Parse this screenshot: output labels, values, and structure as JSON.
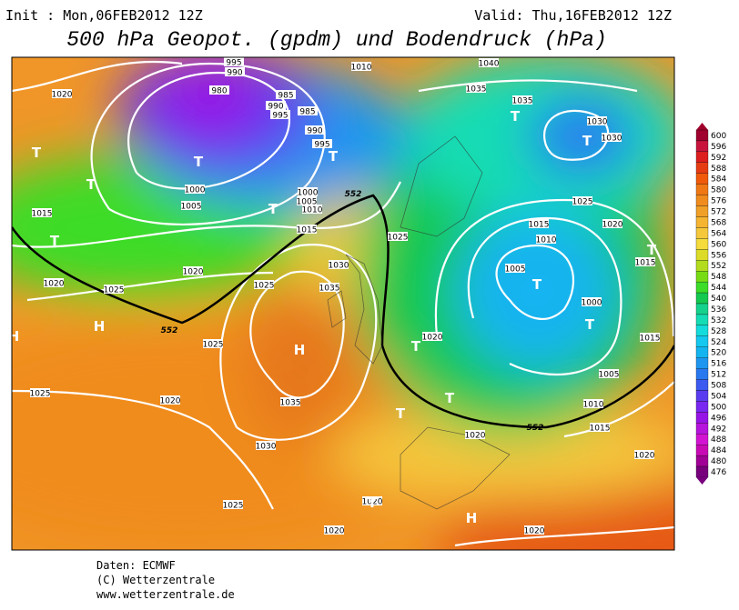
{
  "header": {
    "init": "Init : Mon,06FEB2012 12Z",
    "valid": "Valid: Thu,16FEB2012 12Z",
    "title": "500 hPa Geopot. (gpdm) und Bodendruck (hPa)"
  },
  "legend": {
    "levels": [
      600,
      596,
      592,
      588,
      584,
      580,
      576,
      572,
      568,
      564,
      560,
      556,
      552,
      548,
      544,
      540,
      536,
      532,
      528,
      524,
      520,
      516,
      512,
      508,
      504,
      500,
      496,
      492,
      488,
      484,
      480,
      476
    ],
    "colors": [
      "#a0002d",
      "#c8143c",
      "#dc1e1e",
      "#e63c14",
      "#f05a0a",
      "#f07814",
      "#f08c1e",
      "#f0a028",
      "#f5b432",
      "#f5c83c",
      "#f5dc3c",
      "#dcdc28",
      "#b4dc1e",
      "#78dc14",
      "#3cdc28",
      "#14c850",
      "#14d28c",
      "#14dcb4",
      "#14dcdc",
      "#14c8f0",
      "#14b4f0",
      "#1e96f0",
      "#2878f0",
      "#3c5af0",
      "#5a3cf0",
      "#7828f0",
      "#9614e6",
      "#b414dc",
      "#d214d2",
      "#c80ab4",
      "#a00096",
      "#78007d"
    ]
  },
  "isobar_labels": [
    "1020",
    "995",
    "990",
    "980",
    "985",
    "990",
    "995",
    "985",
    "990",
    "995",
    "1000",
    "1005",
    "1000",
    "1005",
    "1010",
    "1015",
    "1010",
    "1040",
    "1035",
    "1035",
    "1030",
    "1030",
    "1025",
    "1020",
    "1015",
    "1010",
    "1005",
    "1000",
    "1015",
    "1015",
    "1005",
    "1010",
    "1015",
    "1020",
    "1015",
    "1020",
    "1025",
    "1020",
    "1025",
    "1025",
    "1030",
    "1035",
    "1025",
    "1025",
    "1020",
    "1035",
    "1030",
    "1020",
    "1020",
    "1020",
    "1025",
    "1020",
    "1020"
  ],
  "height_labels": [
    "552",
    "552",
    "552"
  ],
  "pressure_centers": [
    "T",
    "T",
    "T",
    "T",
    "T",
    "T",
    "T",
    "T",
    "T",
    "T",
    "T",
    "T",
    "T",
    "T",
    "T",
    "H",
    "H",
    "H",
    "H"
  ],
  "footer": {
    "source": "Daten: ECMWF",
    "copyright": "(C) Wetterzentrale",
    "url": "www.wetterzentrale.de"
  }
}
